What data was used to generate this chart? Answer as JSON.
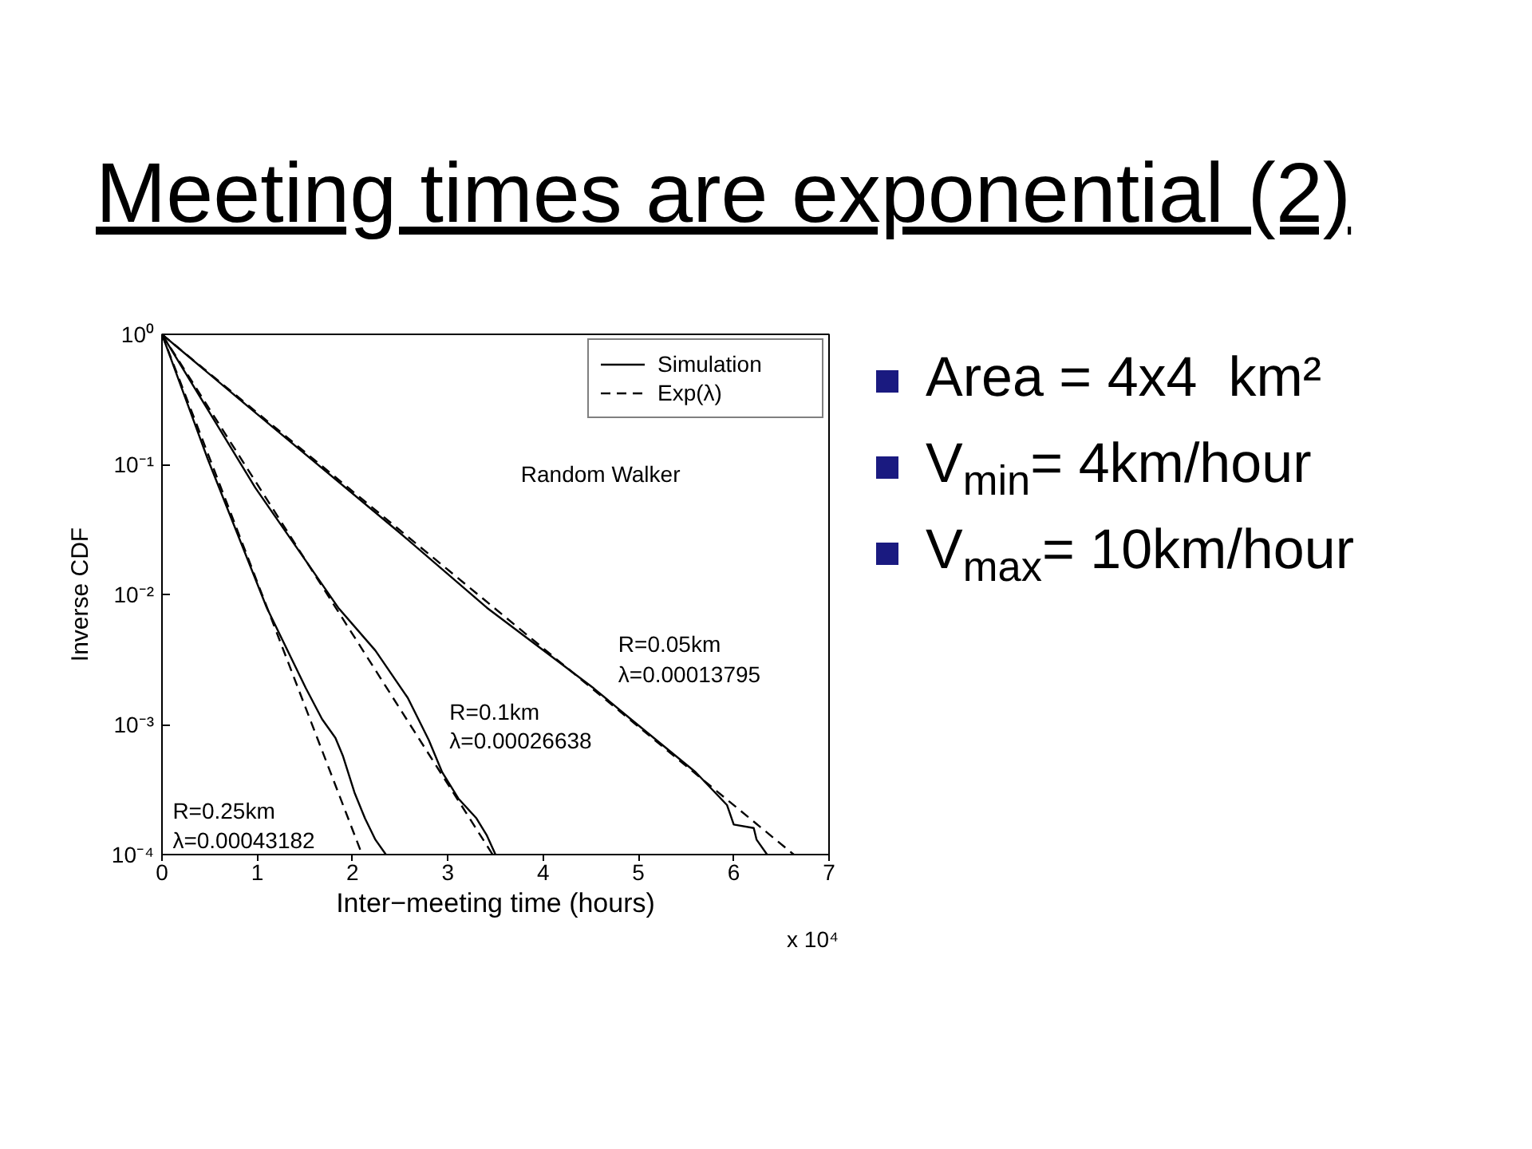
{
  "chart_data": {
    "type": "line",
    "title": "Meeting times are exponential (2)",
    "xlabel": "Inter−meeting time (hours)",
    "ylabel": "Inverse CDF",
    "xlim": [
      0,
      7
    ],
    "ylim": [
      0.0001,
      1
    ],
    "log": "y",
    "grid": false,
    "legend": "top right",
    "xticks": [
      0,
      1,
      2,
      3,
      4,
      5,
      6,
      7
    ],
    "yticks": [
      {
        "value": 0.0001,
        "label": "10⁻⁴"
      },
      {
        "value": 0.001,
        "label": "10⁻³"
      },
      {
        "value": 0.01,
        "label": "10⁻²"
      },
      {
        "value": 0.1,
        "label": "10⁻¹"
      },
      {
        "value": 1,
        "label": "10⁰"
      }
    ],
    "series": [
      {
        "name": "Simulation",
        "color": "#000000",
        "line_style": "solid",
        "x": [
          0,
          0.98,
          2.49,
          3.41,
          4.53,
          4.92,
          5.6,
          5.93,
          6.0,
          6.21,
          6.24,
          6.35
        ],
        "values": [
          1,
          0.25,
          0.03,
          0.0079,
          0.0019,
          0.0011,
          0.00043,
          0.00024,
          0.00017,
          0.00016,
          0.00013,
          0.0001
        ]
      },
      {
        "name": "Exp(λ)",
        "color": "#000000",
        "line_style": "dashed",
        "x": [
          0,
          6.63
        ],
        "values": [
          1,
          0.0001
        ]
      },
      {
        "color": "#000000",
        "line_style": "solid",
        "x": [
          0,
          0.98,
          1.85,
          2.24,
          2.58,
          2.8,
          2.94,
          3.11,
          3.3,
          3.41,
          3.5
        ],
        "values": [
          1,
          0.066,
          0.0079,
          0.0037,
          0.0016,
          0.00076,
          0.00043,
          0.00027,
          0.00019,
          0.00014,
          0.0001
        ]
      },
      {
        "color": "#000000",
        "line_style": "dashed",
        "x": [
          0,
          3.47
        ],
        "values": [
          1,
          0.0001
        ]
      },
      {
        "color": "#000000",
        "line_style": "solid",
        "x": [
          0,
          0.48,
          1.1,
          1.51,
          1.68,
          1.82,
          1.9,
          2.02,
          2.13,
          2.24,
          2.35
        ],
        "values": [
          1,
          0.11,
          0.0079,
          0.0019,
          0.0011,
          0.00079,
          0.00057,
          0.0003,
          0.00019,
          0.00013,
          0.0001
        ]
      },
      {
        "color": "#000000",
        "line_style": "dashed",
        "x": [
          0,
          2.1
        ],
        "values": [
          1,
          0.0001
        ]
      }
    ],
    "annotations": [
      "Random Walker",
      "R=0.05km",
      "λ=0.00013795",
      "R=0.1km",
      "λ=0.00026638",
      "R=0.25km",
      "λ=0.00043182",
      "x 10⁴",
      "Area = 4x4  km²",
      "V$_{min}$= 4km/hour",
      "V$_{max}$= 10km/hour"
    ]
  }
}
